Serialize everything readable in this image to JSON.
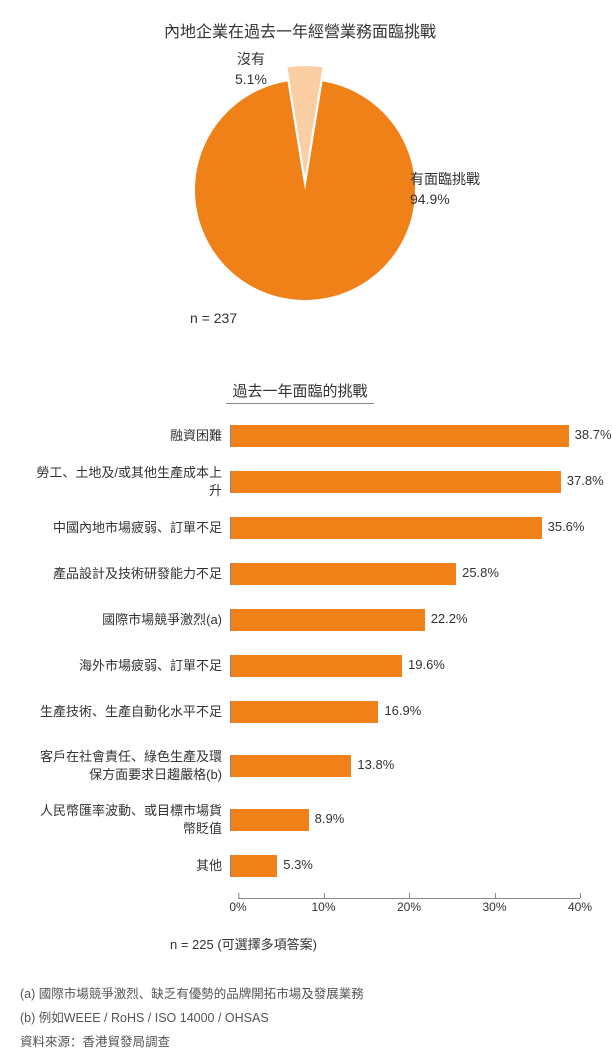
{
  "pie": {
    "title": "內地企業在過去一年經營業務面臨挑戰",
    "slices": [
      {
        "label": "有面臨挑戰",
        "pct_label": "94.9%",
        "value": 94.9,
        "color": "#f08018"
      },
      {
        "label": "沒有",
        "pct_label": "5.1%",
        "value": 5.1,
        "color": "#fbcfa3"
      }
    ],
    "n_label": "n = 237",
    "label_fontsize": 14,
    "title_fontsize": 16,
    "background_color": "#ffffff",
    "radius": 110,
    "small_slice_offset": 14
  },
  "bar": {
    "title": "過去一年面臨的挑戰",
    "bar_color": "#f08018",
    "xmax": 40,
    "xtick_step": 10,
    "xticks": [
      "0%",
      "10%",
      "20%",
      "30%",
      "40%"
    ],
    "axis_color": "#888888",
    "label_fontsize": 13,
    "value_fontsize": 13,
    "n_label": "n = 225 (可選擇多項答案)",
    "items": [
      {
        "label": "融資困難",
        "value": 38.7,
        "value_label": "38.7%"
      },
      {
        "label": "勞工、土地及/或其他生產成本上升",
        "value": 37.8,
        "value_label": "37.8%"
      },
      {
        "label": "中國內地市場疲弱、訂單不足",
        "value": 35.6,
        "value_label": "35.6%"
      },
      {
        "label": "產品設計及技術研發能力不足",
        "value": 25.8,
        "value_label": "25.8%"
      },
      {
        "label": "國際市場競爭激烈(a)",
        "value": 22.2,
        "value_label": "22.2%"
      },
      {
        "label": "海外市場疲弱、訂單不足",
        "value": 19.6,
        "value_label": "19.6%"
      },
      {
        "label": "生產技術、生產自動化水平不足",
        "value": 16.9,
        "value_label": "16.9%"
      },
      {
        "label": "客戶在社會責任、綠色生產及環保方面要求日趨嚴格(b)",
        "value": 13.8,
        "value_label": "13.8%",
        "multiline": true
      },
      {
        "label": "人民幣匯率波動、或目標市場貨幣貶值",
        "value": 8.9,
        "value_label": "8.9%"
      },
      {
        "label": "其他",
        "value": 5.3,
        "value_label": "5.3%"
      }
    ]
  },
  "footnotes": {
    "a": "(a) 國際市場競爭激烈、缺乏有優勢的品牌開拓市場及發展業務",
    "b": "(b) 例如WEEE / RoHS / ISO 14000 / OHSAS",
    "source": "資料來源：香港貿發局調查"
  }
}
